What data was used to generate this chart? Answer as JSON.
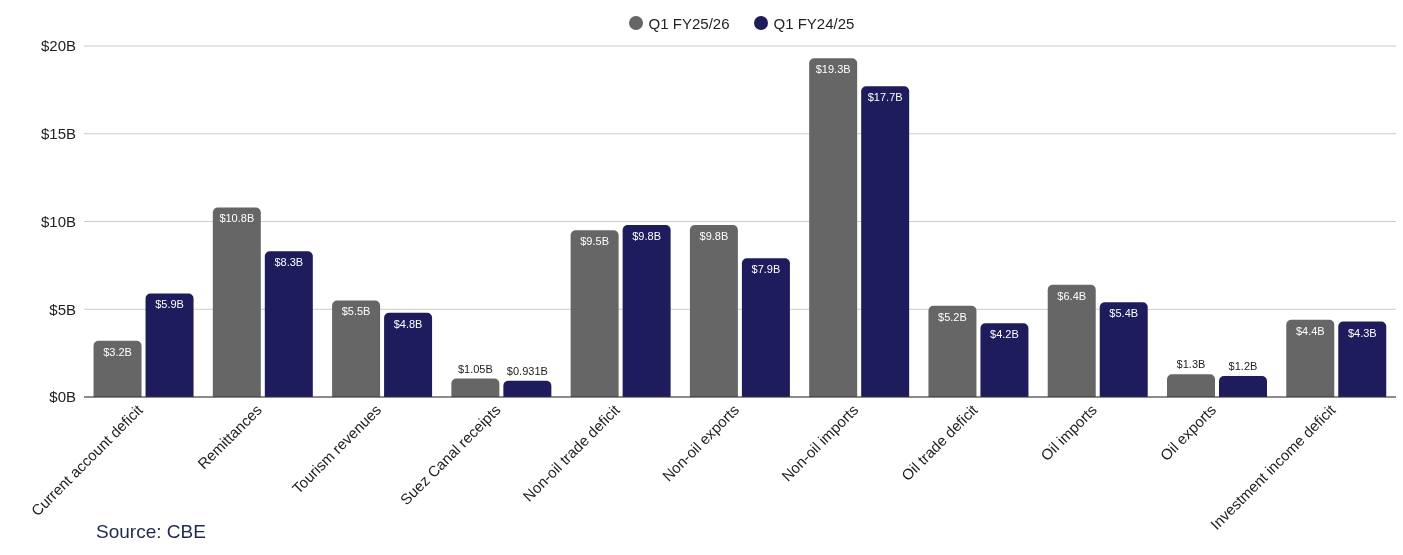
{
  "chart_data": {
    "type": "bar",
    "categories": [
      "Current account deficit",
      "Remittances",
      "Tourism revenues",
      "Suez Canal receipts",
      "Non-oil trade deficit",
      "Non-oil exports",
      "Non-oil imports",
      "Oil trade deficit",
      "Oil imports",
      "Oil exports",
      "Investment income deficit"
    ],
    "series": [
      {
        "name": "Q1 FY25/26",
        "color": "#666666",
        "values": [
          3.2,
          10.8,
          5.5,
          1.05,
          9.5,
          9.8,
          19.3,
          5.2,
          6.4,
          1.3,
          4.4
        ],
        "value_labels": [
          "$3.2B",
          "$10.8B",
          "$5.5B",
          "$1.05B",
          "$9.5B",
          "$9.8B",
          "$19.3B",
          "$5.2B",
          "$6.4B",
          "$1.3B",
          "$4.4B"
        ]
      },
      {
        "name": "Q1 FY24/25",
        "color": "#1e1c5c",
        "values": [
          5.9,
          8.3,
          4.8,
          0.931,
          9.8,
          7.9,
          17.7,
          4.2,
          5.4,
          1.2,
          4.3
        ],
        "value_labels": [
          "$5.9B",
          "$8.3B",
          "$4.8B",
          "$0.931B",
          "$9.8B",
          "$7.9B",
          "$17.7B",
          "$4.2B",
          "$5.4B",
          "$1.2B",
          "$4.3B"
        ]
      }
    ],
    "ylim": [
      0,
      20
    ],
    "yticks": [
      {
        "value": 0,
        "label": "$0B"
      },
      {
        "value": 5,
        "label": "$5B"
      },
      {
        "value": 10,
        "label": "$10B"
      },
      {
        "value": 15,
        "label": "$15B"
      },
      {
        "value": 20,
        "label": "$20B"
      }
    ],
    "grid": "y",
    "legend": "top",
    "annotations": [
      "Source: CBE"
    ]
  }
}
